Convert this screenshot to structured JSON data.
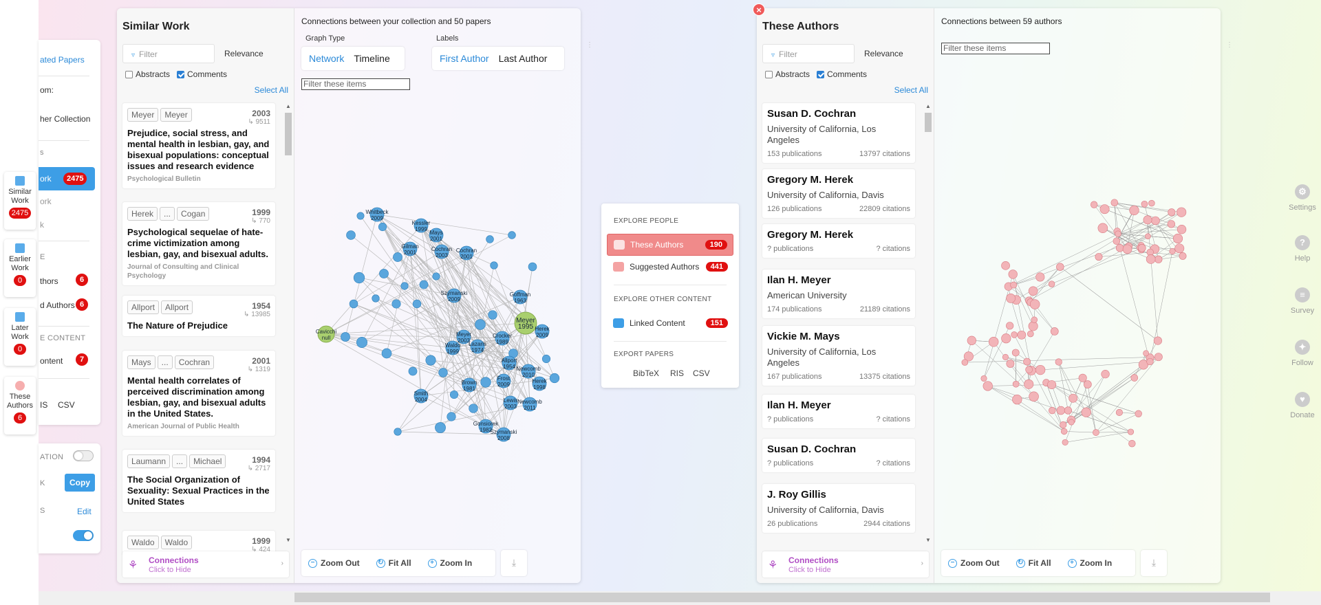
{
  "bg_panel": {
    "items": [
      "ated Papers",
      "om:",
      "her Collection",
      "s",
      "ork",
      "ork",
      "k",
      "E",
      "thors",
      "d Authors",
      "E CONTENT",
      "ontent",
      "IS",
      "CSV",
      "ATION",
      "K",
      "S"
    ],
    "badges": [
      "2475",
      "6",
      "6",
      "7"
    ],
    "copy_label": "Copy",
    "edit_label": "Edit"
  },
  "vnav": [
    {
      "label": "Similar Work",
      "count": "2475"
    },
    {
      "label": "Earlier Work",
      "count": "0"
    },
    {
      "label": "Later Work",
      "count": "0"
    },
    {
      "label": "These Authors",
      "count": "6"
    }
  ],
  "left_panel": {
    "title": "Similar Work",
    "filter_placeholder": "Filter",
    "sort": "Relevance",
    "abstracts": "Abstracts",
    "comments": "Comments",
    "select_all": "Select All",
    "papers": [
      {
        "authors": [
          "Meyer",
          "Meyer"
        ],
        "year": "2003",
        "cites": "9511",
        "title": "Prejudice, social stress, and mental health in lesbian, gay, and bisexual populations: conceptual issues and research evidence",
        "journal": "Psychological Bulletin"
      },
      {
        "authors": [
          "Herek",
          "...",
          "Cogan"
        ],
        "year": "1999",
        "cites": "770",
        "title": "Psychological sequelae of hate-crime victimization among lesbian, gay, and bisexual adults.",
        "journal": "Journal of Consulting and Clinical Psychology"
      },
      {
        "authors": [
          "Allport",
          "Allport"
        ],
        "year": "1954",
        "cites": "13985",
        "title": "The Nature of Prejudice",
        "journal": ""
      },
      {
        "authors": [
          "Mays",
          "...",
          "Cochran"
        ],
        "year": "2001",
        "cites": "1319",
        "title": "Mental health correlates of perceived discrimination among lesbian, gay, and bisexual adults in the United States.",
        "journal": "American Journal of Public Health"
      },
      {
        "authors": [
          "Laumann",
          "...",
          "Michael"
        ],
        "year": "1994",
        "cites": "2717",
        "title": "The Social Organization of Sexuality: Sexual Practices in the United States",
        "journal": ""
      },
      {
        "authors": [
          "Waldo",
          "Waldo"
        ],
        "year": "1999",
        "cites": "424",
        "title": "",
        "journal": ""
      }
    ],
    "connections_title": "Connections",
    "connections_sub": "Click to Hide",
    "graph_header": "Connections between your collection and 50 papers",
    "graph_type_label": "Graph Type",
    "graph_type_options": [
      "Network",
      "Timeline"
    ],
    "labels_label": "Labels",
    "labels_options": [
      "First Author",
      "Last Author"
    ],
    "graph_filter": "Filter these items",
    "zoom_out": "Zoom Out",
    "fit_all": "Fit All",
    "zoom_in": "Zoom In",
    "nodes": [
      [
        "Whitbeck",
        "2009"
      ],
      [
        "Kessler",
        "1999"
      ],
      [
        "Mays",
        "2001"
      ],
      [
        "Gilman",
        "2001"
      ],
      [
        "Cochran",
        "2003"
      ],
      [
        "Cochran",
        "2001"
      ],
      [
        "Szymanski",
        "2009"
      ],
      [
        "Goffman",
        "1963"
      ],
      [
        "Meyer",
        "1995"
      ],
      [
        "Herek",
        "2009"
      ],
      [
        "Meyer",
        "2003"
      ],
      [
        "Waldo",
        "1999"
      ],
      [
        "Lazaris",
        "1974"
      ],
      [
        "Crocker",
        "1989"
      ],
      [
        "Allport",
        "1954"
      ],
      [
        "Newcomb",
        "2010"
      ],
      [
        "Frost",
        "2009"
      ],
      [
        "Herek",
        "1998"
      ],
      [
        "Brown",
        "1981"
      ],
      [
        "Smith",
        "2004"
      ],
      [
        "Lewis",
        "2003"
      ],
      [
        "Newcomb",
        "2011"
      ],
      [
        "Gonsiorek",
        "1982"
      ],
      [
        "Szymanski",
        "2008"
      ],
      [
        "Cavicchi",
        "null"
      ]
    ]
  },
  "explore": {
    "people_heading": "EXPLORE PEOPLE",
    "these_authors": "These Authors",
    "these_authors_count": "190",
    "suggested_authors": "Suggested Authors",
    "suggested_authors_count": "441",
    "other_heading": "EXPLORE OTHER CONTENT",
    "linked_content": "Linked Content",
    "linked_content_count": "151",
    "export_heading": "EXPORT PAPERS",
    "exports": [
      "BibTeX",
      "RIS",
      "CSV"
    ]
  },
  "right_panel": {
    "title": "These Authors",
    "filter_placeholder": "Filter",
    "sort": "Relevance",
    "abstracts": "Abstracts",
    "comments": "Comments",
    "select_all": "Select All",
    "authors": [
      {
        "name": "Susan D. Cochran",
        "affiliation": "University of California, Los Angeles",
        "pubs": "153 publications",
        "cites": "13797 citations"
      },
      {
        "name": "Gregory M. Herek",
        "affiliation": "University of California, Davis",
        "pubs": "126 publications",
        "cites": "22809 citations"
      },
      {
        "name": "Gregory M. Herek",
        "affiliation": "",
        "pubs": "? publications",
        "cites": "? citations"
      },
      {
        "name": "Ilan H. Meyer",
        "affiliation": "American University",
        "pubs": "174 publications",
        "cites": "21189 citations"
      },
      {
        "name": "Vickie M. Mays",
        "affiliation": "University of California, Los Angeles",
        "pubs": "167 publications",
        "cites": "13375 citations"
      },
      {
        "name": "Ilan H. Meyer",
        "affiliation": "",
        "pubs": "? publications",
        "cites": "? citations"
      },
      {
        "name": "Susan D. Cochran",
        "affiliation": "",
        "pubs": "? publications",
        "cites": "? citations"
      },
      {
        "name": "J. Roy Gillis",
        "affiliation": "University of California, Davis",
        "pubs": "26 publications",
        "cites": "2944 citations"
      }
    ],
    "connections_title": "Connections",
    "connections_sub": "Click to Hide",
    "graph_header": "Connections between 59 authors",
    "graph_filter": "Filter these items",
    "zoom_out": "Zoom Out",
    "fit_all": "Fit All",
    "zoom_in": "Zoom In"
  },
  "right_sidebar": [
    "Settings",
    "Help",
    "Survey",
    "Follow",
    "Donate"
  ],
  "colors": {
    "accent": "#3d9ee6",
    "badge": "#e01010",
    "author_accent": "#f08a8a",
    "connections": "#b04dc4"
  }
}
